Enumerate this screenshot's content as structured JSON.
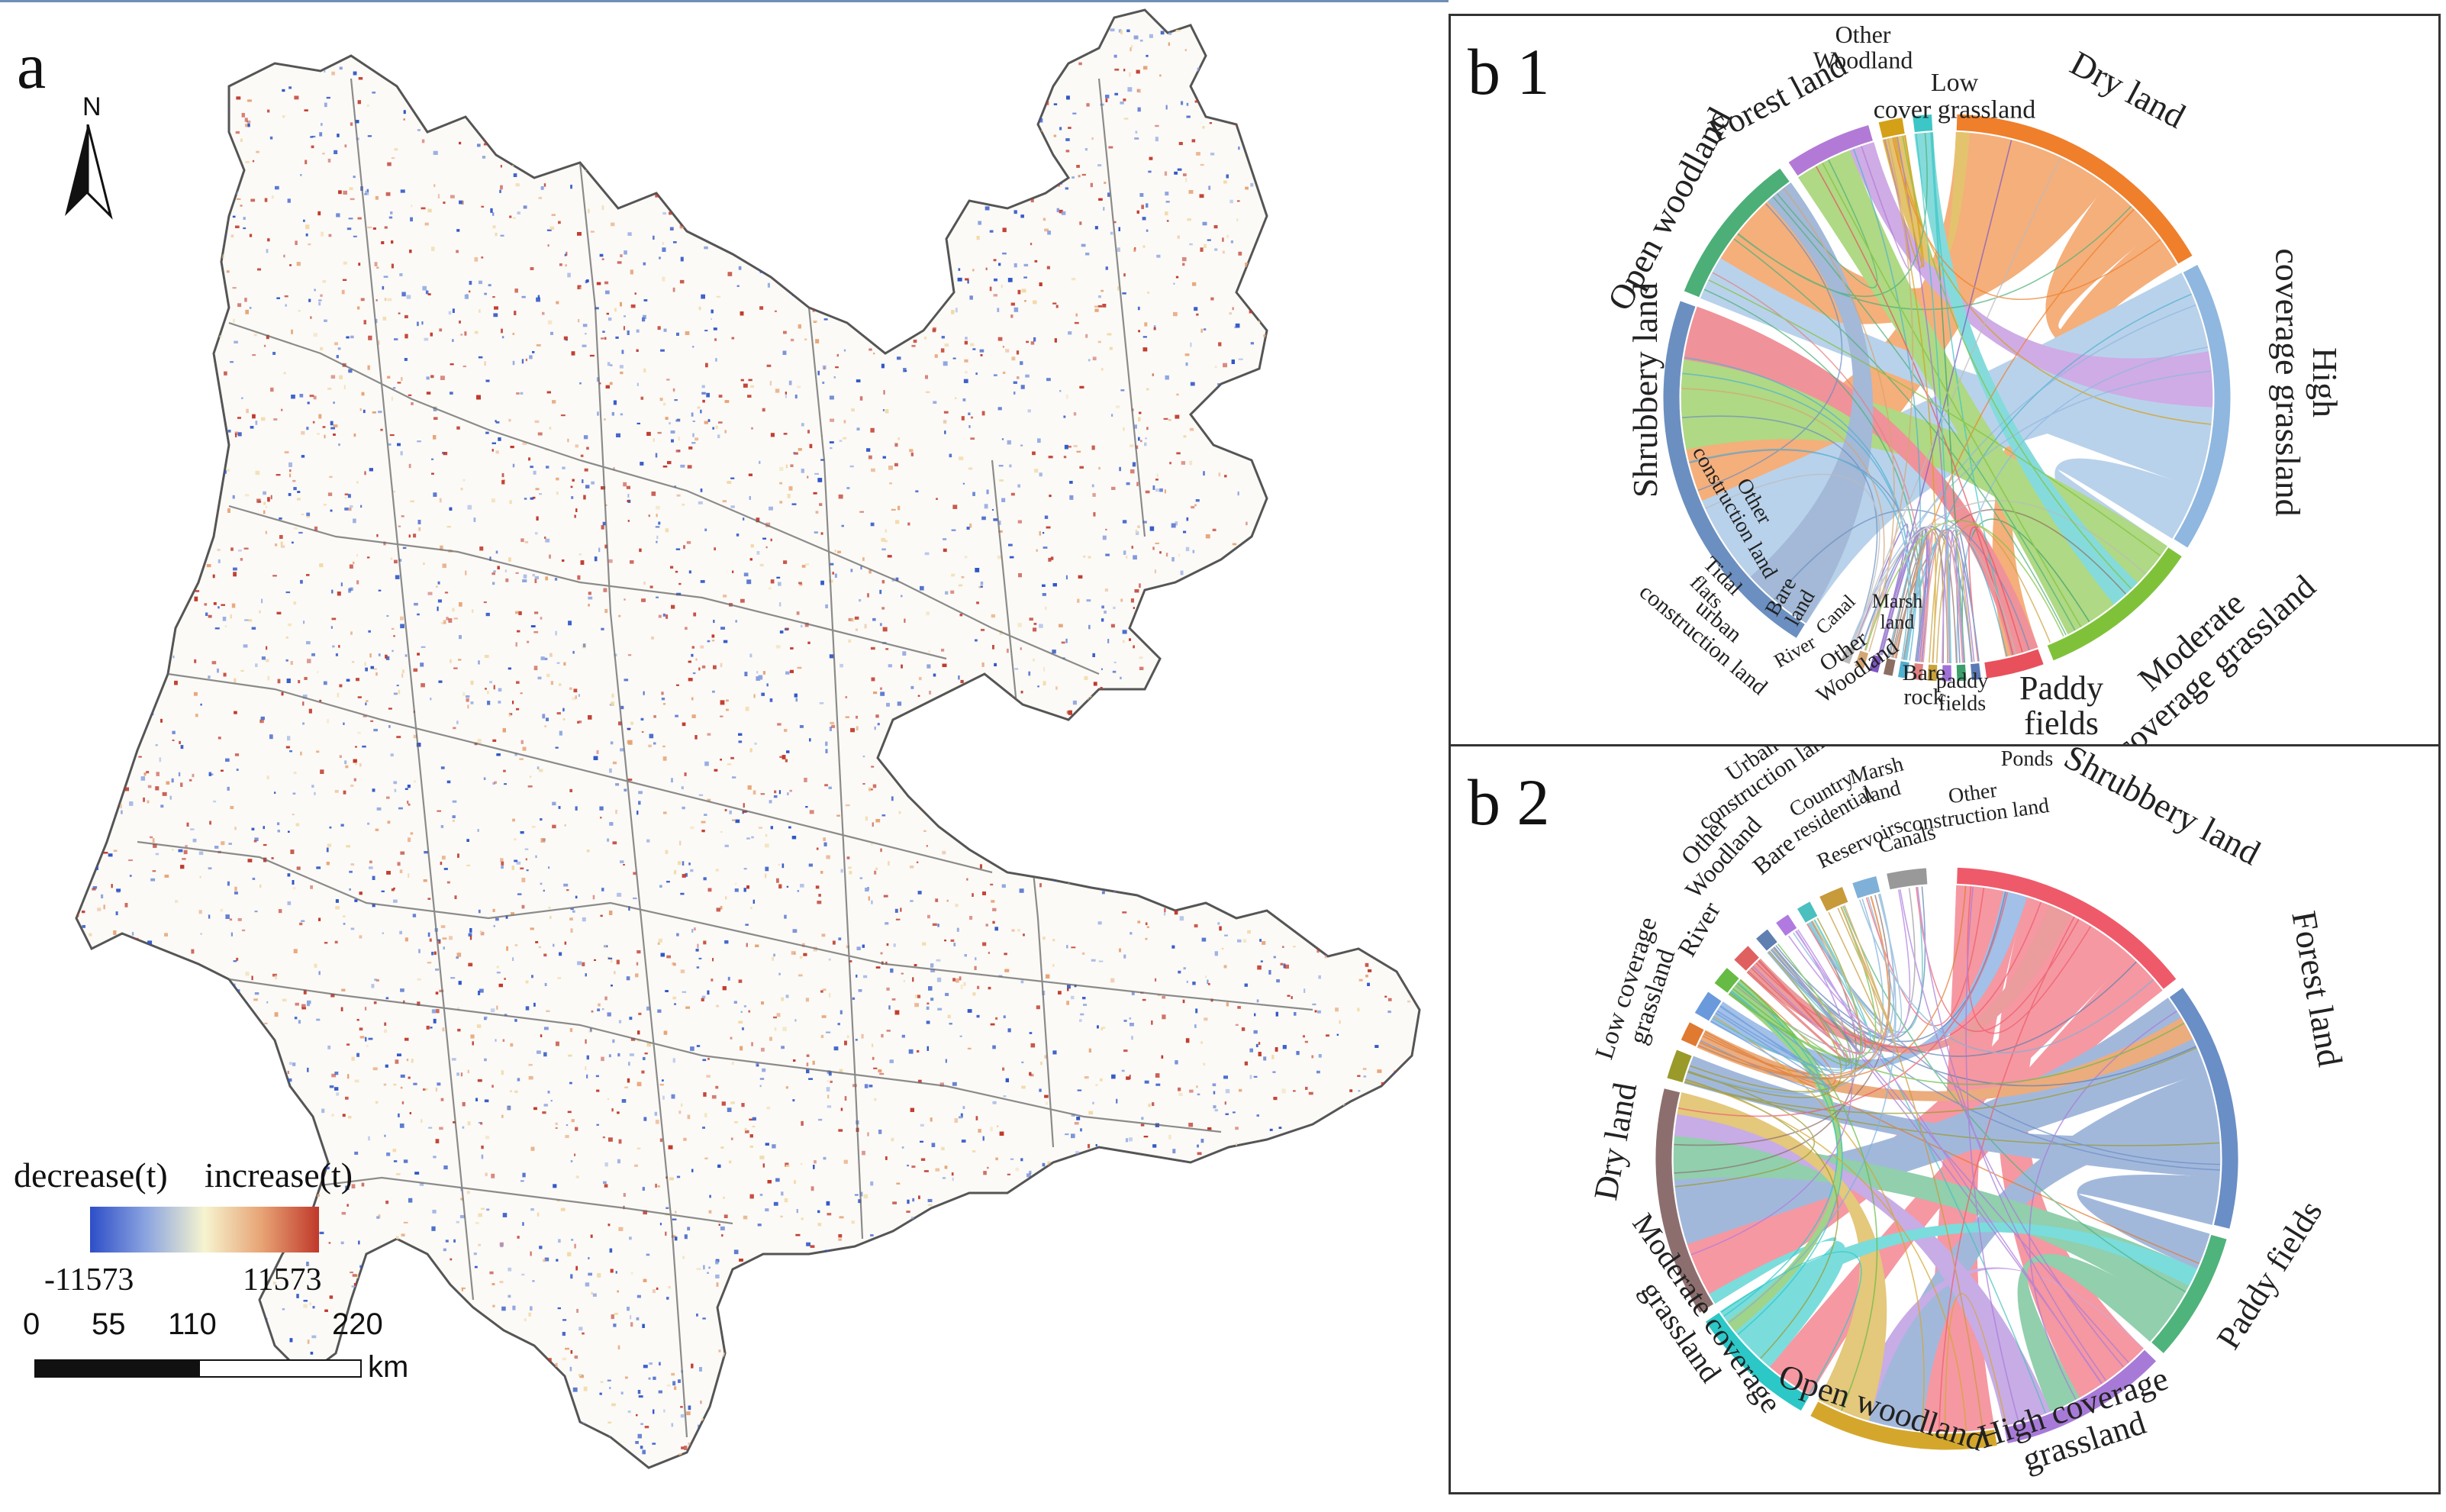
{
  "panel_a": {
    "label": "a",
    "north": "N",
    "legend": {
      "decrease_label": "decrease(t)",
      "increase_label": "increase(t)",
      "min": "-11573",
      "max": "11573",
      "colors": [
        "#2d4ec8",
        "#8ea6e0",
        "#f6f4cf",
        "#e7a374",
        "#c0392b"
      ]
    },
    "scalebar": {
      "ticks": [
        "0",
        "55",
        "110",
        "220"
      ],
      "unit": "km"
    },
    "map_colors": {
      "boundary": "#555555",
      "decrease": "#2f55c6",
      "increase": "#c0392b",
      "neutral": "#f1d9a6"
    }
  },
  "panel_b1": {
    "label": "b 1",
    "categories": [
      {
        "name": "Dry land",
        "color": "#ef7f2b"
      },
      {
        "name": "High coverage grassland",
        "color": "#8fb7df"
      },
      {
        "name": "Moderate coverage grassland",
        "color": "#7fc23a"
      },
      {
        "name": "Paddy fields",
        "color": "#e8505b"
      },
      {
        "name": "paddy fields",
        "color": "#5a79b5"
      },
      {
        "name": "Bare rock",
        "color": "#3a9f6a"
      },
      {
        "name": "Marsh land",
        "color": "#a070d8"
      },
      {
        "name": "Other Woodland",
        "color": "#c9a23a"
      },
      {
        "name": "Canal",
        "color": "#e08080"
      },
      {
        "name": "River",
        "color": "#50b0d0"
      },
      {
        "name": "Bare land",
        "color": "#8d6e63"
      },
      {
        "name": "urban construction land",
        "color": "#7e57c2"
      },
      {
        "name": "Tidal flats",
        "color": "#d4a574"
      },
      {
        "name": "Other construction land",
        "color": "#bbbbbb"
      },
      {
        "name": "Shrubbery land",
        "color": "#6b8fc0"
      },
      {
        "name": "Open woodland",
        "color": "#4caf78"
      },
      {
        "name": "Forest land",
        "color": "#b27ad6"
      },
      {
        "name": "Other Woodland",
        "color": "#d4a017"
      },
      {
        "name": "Low cover grassland",
        "color": "#3cc6c6"
      }
    ]
  },
  "panel_b2": {
    "label": "b 2",
    "categories": [
      {
        "name": "Shrubbery land",
        "color": "#ef5a6a"
      },
      {
        "name": "Forest land",
        "color": "#6a8ec6"
      },
      {
        "name": "Paddy fields",
        "color": "#4fb37c"
      },
      {
        "name": "High coverage grassland",
        "color": "#a87ad8"
      },
      {
        "name": "Open woodland",
        "color": "#d4a72c"
      },
      {
        "name": "Moderate coverage grassland",
        "color": "#2cc7c7"
      },
      {
        "name": "Dry land",
        "color": "#8d6e6e"
      },
      {
        "name": "Low coverage grassland",
        "color": "#9a9a2a"
      },
      {
        "name": "River",
        "color": "#e07a30"
      },
      {
        "name": "Other Woodland",
        "color": "#6a9adb"
      },
      {
        "name": "Bare",
        "color": "#66bb44"
      },
      {
        "name": "Country residential",
        "color": "#e06060"
      },
      {
        "name": "Reservoirs",
        "color": "#5f7fb0"
      },
      {
        "name": "Marsh land",
        "color": "#b07ae0"
      },
      {
        "name": "Canals",
        "color": "#4cbfbf"
      },
      {
        "name": "Other construction land",
        "color": "#c79a3a"
      },
      {
        "name": "Ponds",
        "color": "#7fb0d8"
      },
      {
        "name": "Urban construction land",
        "color": "#999999"
      }
    ]
  }
}
